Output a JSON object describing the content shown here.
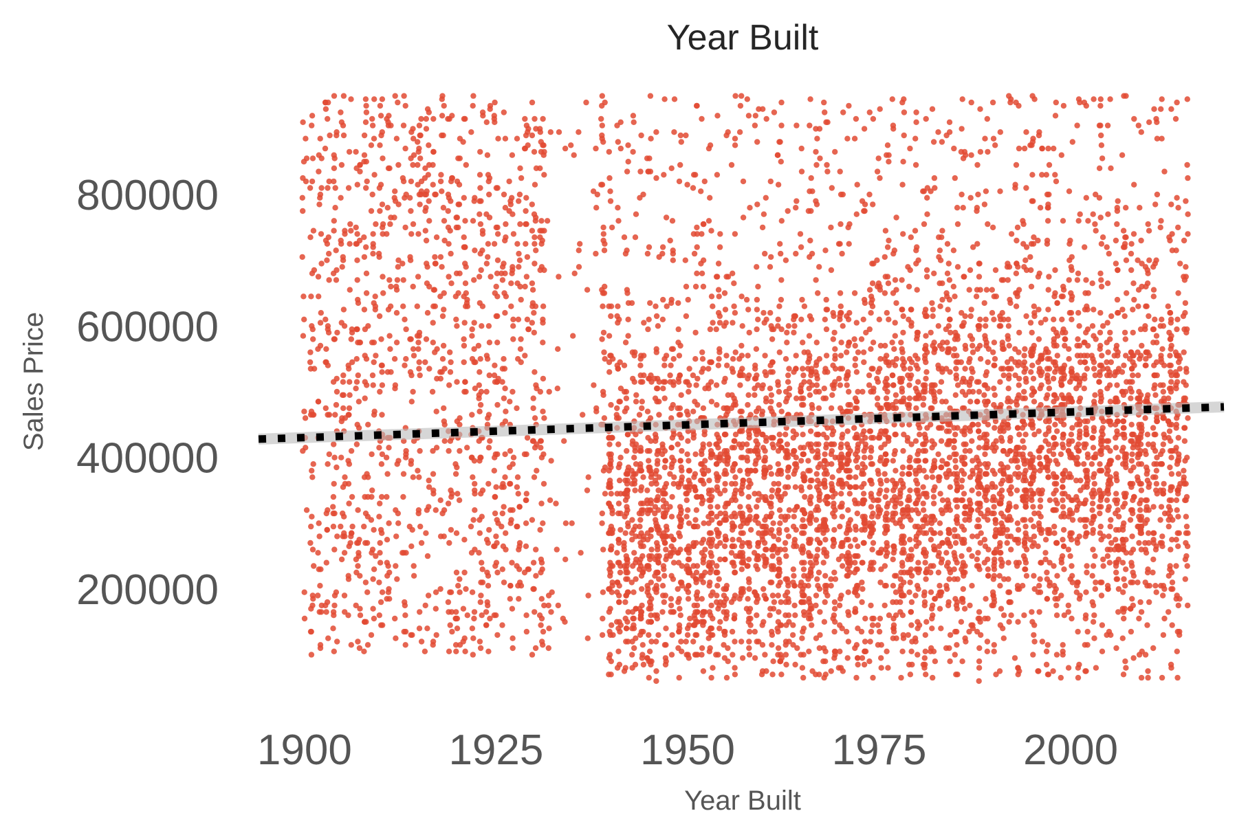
{
  "chart_data": {
    "type": "scatter",
    "title": "Year Built",
    "xlabel": "Year Built",
    "ylabel": "Sales Price",
    "x_ticks": [
      "1900",
      "1925",
      "1950",
      "1975",
      "2000"
    ],
    "y_ticks": [
      "200000",
      "400000",
      "600000",
      "800000"
    ],
    "xlim": [
      1894,
      2020
    ],
    "ylim": [
      40000,
      960000
    ],
    "grid": false,
    "legend": "none",
    "point_color": "#e24a33",
    "trend_color": "#000000",
    "trend_band_color": "#bbbbbb",
    "trend_line": {
      "x": [
        1894,
        2020
      ],
      "y": [
        428000,
        477000
      ]
    },
    "series": [
      {
        "points_summary": {
          "x_min": 1900,
          "x_max": 2015,
          "y_min": 60000,
          "y_max": 950000,
          "approx_count": 8000,
          "sparse_period": [
            1932,
            1938
          ],
          "dense_period": [
            1940,
            2015
          ]
        }
      }
    ]
  }
}
